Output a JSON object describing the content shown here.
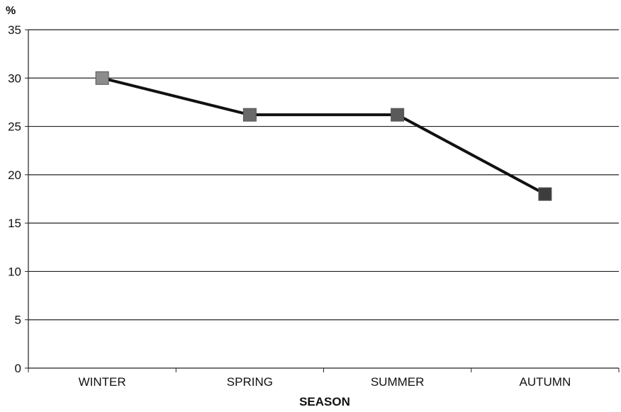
{
  "chart_data": {
    "type": "line",
    "title": "",
    "xlabel": "SEASON",
    "ylabel": "%",
    "categories": [
      "WINTER",
      "SPRING",
      "SUMMER",
      "AUTUMN"
    ],
    "series": [
      {
        "values": [
          30,
          26.2,
          26.2,
          18
        ]
      }
    ],
    "ylim": [
      0,
      35
    ],
    "yticks": [
      "0",
      "5",
      "10",
      "15",
      "20",
      "25",
      "30",
      "35"
    ],
    "grid": true,
    "legend": "none",
    "colors": {
      "line": "#111111",
      "grid": "#222222",
      "markers": [
        "#8c8c8c",
        "#6a6a6a",
        "#5a5a5a",
        "#3d3d3d"
      ]
    }
  }
}
